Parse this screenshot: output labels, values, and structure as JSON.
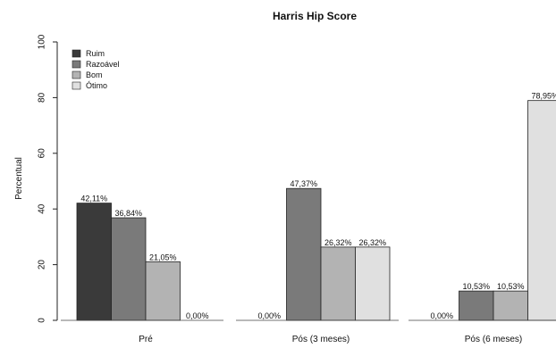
{
  "chart_data": {
    "type": "bar",
    "title": "Harris Hip Score",
    "ylabel": "Percentual",
    "xlabel": "",
    "ylim": [
      0,
      100
    ],
    "yticks": [
      0,
      20,
      40,
      60,
      80,
      100
    ],
    "categories": [
      "Pré",
      "Pós (3 meses)",
      "Pós (6 meses)"
    ],
    "series": [
      {
        "name": "Ruim",
        "color": "#3a3a3a",
        "values": [
          42.11,
          0,
          0
        ],
        "labels": [
          "42,11%",
          "0,00%",
          "0,00%"
        ]
      },
      {
        "name": "Razoável",
        "color": "#7a7a7a",
        "values": [
          36.84,
          47.37,
          10.53
        ],
        "labels": [
          "36,84%",
          "47,37%",
          "10,53%"
        ]
      },
      {
        "name": "Bom",
        "color": "#b3b3b3",
        "values": [
          21.05,
          26.32,
          10.53
        ],
        "labels": [
          "21,05%",
          "26,32%",
          "10,53%"
        ]
      },
      {
        "name": "Ótimo",
        "color": "#e0e0e0",
        "values": [
          0,
          26.32,
          78.95
        ],
        "labels": [
          "0,00%",
          "26,32%",
          "78,95%"
        ]
      }
    ],
    "grid": false,
    "legend_position": "top-left"
  }
}
